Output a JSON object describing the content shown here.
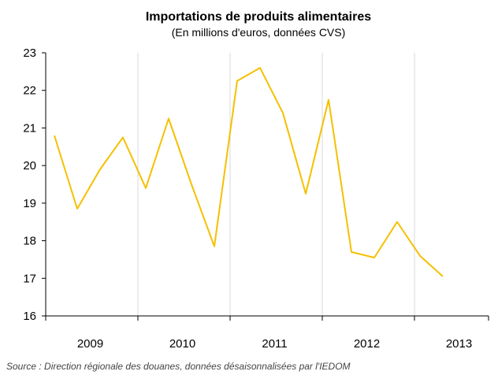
{
  "chart_data": {
    "type": "line",
    "title": "Importations de produits alimentaires",
    "subtitle": "(En millions d'euros, données CVS)",
    "xlabel": "",
    "ylabel": "",
    "ylim": [
      16,
      23
    ],
    "yticks": [
      16,
      17,
      18,
      19,
      20,
      21,
      22,
      23
    ],
    "year_labels": [
      "2009",
      "2010",
      "2011",
      "2012",
      "2013"
    ],
    "grid": true,
    "series": [
      {
        "color": "#f5c000",
        "x": [
          "2009-T1",
          "2009-T2",
          "2009-T3",
          "2009-T4",
          "2010-T1",
          "2010-T2",
          "2010-T3",
          "2010-T4",
          "2011-T1",
          "2011-T2",
          "2011-T3",
          "2011-T4",
          "2012-T1",
          "2012-T2",
          "2012-T3",
          "2012-T4",
          "2013-T1",
          "2013-T2"
        ],
        "values": [
          20.8,
          18.85,
          19.9,
          20.75,
          19.4,
          21.25,
          19.5,
          17.85,
          22.25,
          22.6,
          21.4,
          19.25,
          21.75,
          17.7,
          17.55,
          18.5,
          17.6,
          17.05
        ]
      }
    ],
    "source": "Source : Direction régionale des douanes, données désaisonnalisées par l'IEDOM"
  }
}
